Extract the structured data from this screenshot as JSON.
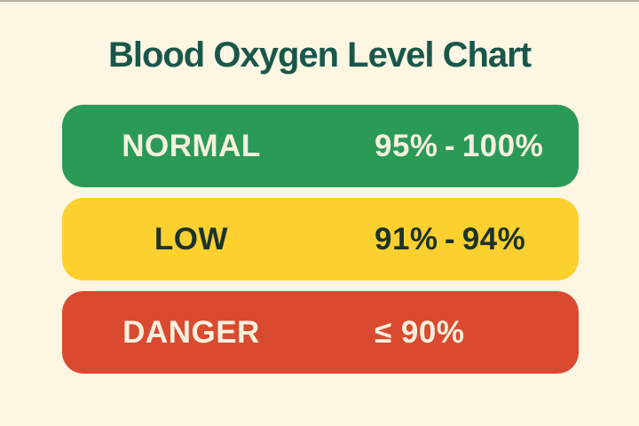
{
  "page": {
    "title": "Blood Oxygen Level Chart",
    "background_color": "#fcf6e3",
    "title_color": "#1a574b"
  },
  "chart_data": {
    "type": "table",
    "title": "Blood Oxygen Level Chart",
    "rows": [
      {
        "label": "NORMAL",
        "range": "95% - 100%",
        "min_percent": 95,
        "max_percent": 100,
        "band_color": "#2b9a56",
        "text_color": "#f6f0dd"
      },
      {
        "label": "LOW",
        "range": "91% - 94%",
        "min_percent": 91,
        "max_percent": 94,
        "band_color": "#fcd02f",
        "text_color": "#1c332a"
      },
      {
        "label": "DANGER",
        "range": "≤ 90%",
        "max_percent": 90,
        "band_color": "#da4a30",
        "text_color": "#f6f0dd"
      }
    ]
  }
}
